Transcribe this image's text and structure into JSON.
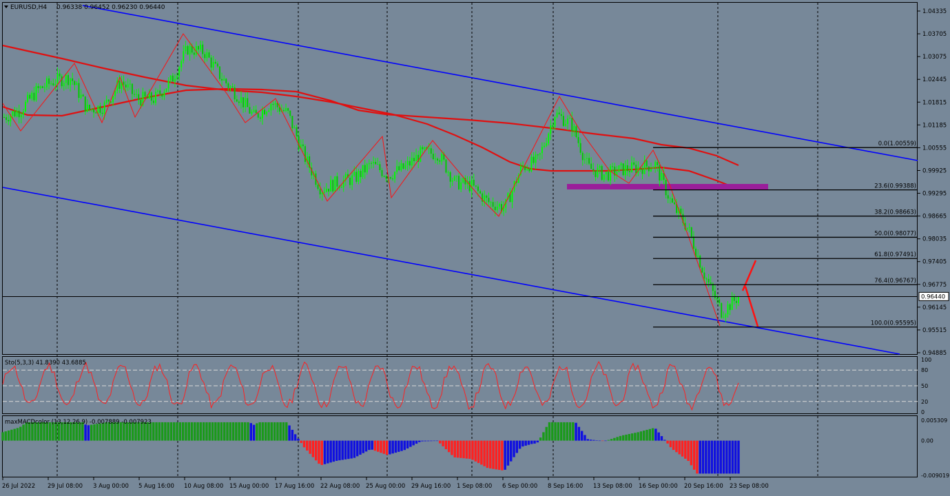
{
  "window": {
    "title": "EURUSD,H4",
    "ohlc": "0.96338 0.96452 0.96230 0.96440",
    "collapse_icon": "triangle-down-icon"
  },
  "colors": {
    "background": "#778899",
    "bull_candle": "#00ff00",
    "bear_candle": "#00ff00",
    "ma": "#e01010",
    "channel": "#0000ff",
    "zigzag": "#ff1010",
    "fib": "#000000",
    "zone": "#9a1e9a",
    "stoch": "#ff2020",
    "macd_pos_up": "#1a9a1a",
    "macd_neg_down": "#ff2020",
    "macd_neg_up": "#1010e0",
    "macd_signal": "#e0a060",
    "axis_text": "#000000",
    "grid": "#000000"
  },
  "price_axis": {
    "labels": [
      "1.04335",
      "1.03705",
      "1.03075",
      "1.02445",
      "1.01815",
      "1.01185",
      "1.00555",
      "0.99925",
      "0.99295",
      "0.98665",
      "0.98035",
      "0.97405",
      "0.96775",
      "0.96145",
      "0.95515",
      "0.94885"
    ],
    "current_price": "0.96440"
  },
  "time_axis": {
    "labels": [
      "26 Jul 2022",
      "29 Jul 08:00",
      "3 Aug 00:00",
      "5 Aug 16:00",
      "10 Aug 08:00",
      "15 Aug 00:00",
      "17 Aug 16:00",
      "22 Aug 08:00",
      "25 Aug 00:00",
      "29 Aug 16:00",
      "1 Sep 08:00",
      "6 Sep 00:00",
      "8 Sep 16:00",
      "13 Sep 08:00",
      "16 Sep 00:00",
      "20 Sep 16:00",
      "23 Sep 08:00"
    ]
  },
  "fib_levels": [
    {
      "label": "0.0(1.00559)",
      "value": 1.00559
    },
    {
      "label": "23.6(0.99388)",
      "value": 0.99388
    },
    {
      "label": "38.2(0.98663)",
      "value": 0.98663
    },
    {
      "label": "50.0(0.98077)",
      "value": 0.98077
    },
    {
      "label": "61.8(0.97491)",
      "value": 0.97491
    },
    {
      "label": "76.4(0.96767)",
      "value": 0.96767
    },
    {
      "label": "100.0(0.95595)",
      "value": 0.95595
    }
  ],
  "stochastic": {
    "title": "Sto(5,3,3) 41.8390 43.6885",
    "axis_labels": [
      "100",
      "80",
      "50",
      "20",
      "0"
    ]
  },
  "macd": {
    "title": "maxMACDcolor (13,12,26,9) -0.007889 -0.007923",
    "axis_labels": [
      "0.005309",
      "0.00",
      "-0.009019"
    ]
  },
  "chart_data": {
    "type": "line",
    "symbol": "EURUSD",
    "timeframe": "H4",
    "ylim": [
      0.94885,
      1.04335
    ],
    "x": [
      "26 Jul",
      "27 Jul",
      "28 Jul",
      "29 Jul",
      "1 Aug",
      "2 Aug",
      "3 Aug",
      "4 Aug",
      "5 Aug",
      "8 Aug",
      "9 Aug",
      "10 Aug",
      "11 Aug",
      "12 Aug",
      "15 Aug",
      "16 Aug",
      "17 Aug",
      "18 Aug",
      "19 Aug",
      "22 Aug",
      "23 Aug",
      "24 Aug",
      "25 Aug",
      "26 Aug",
      "29 Aug",
      "30 Aug",
      "31 Aug",
      "1 Sep",
      "2 Sep",
      "5 Sep",
      "6 Sep",
      "7 Sep",
      "8 Sep",
      "9 Sep",
      "12 Sep",
      "13 Sep",
      "14 Sep",
      "15 Sep",
      "16 Sep",
      "19 Sep",
      "20 Sep",
      "21 Sep",
      "22 Sep",
      "23 Sep",
      "26 Sep"
    ],
    "series": [
      {
        "values": [
          1.014,
          1.016,
          1.0215,
          1.024,
          1.025,
          1.016,
          1.017,
          1.024,
          1.019,
          1.019,
          1.024,
          1.033,
          1.032,
          1.025,
          1.02,
          1.014,
          1.018,
          1.015,
          1.003,
          0.994,
          0.996,
          0.997,
          1.001,
          0.998,
          1.0,
          1.004,
          1.004,
          0.996,
          0.995,
          0.9905,
          0.989,
          1.0,
          1.002,
          1.015,
          1.012,
          1.0,
          0.998,
          0.9995,
          1.0,
          1.001,
          0.99,
          0.983,
          0.97,
          0.96,
          0.9644
        ]
      }
    ]
  }
}
